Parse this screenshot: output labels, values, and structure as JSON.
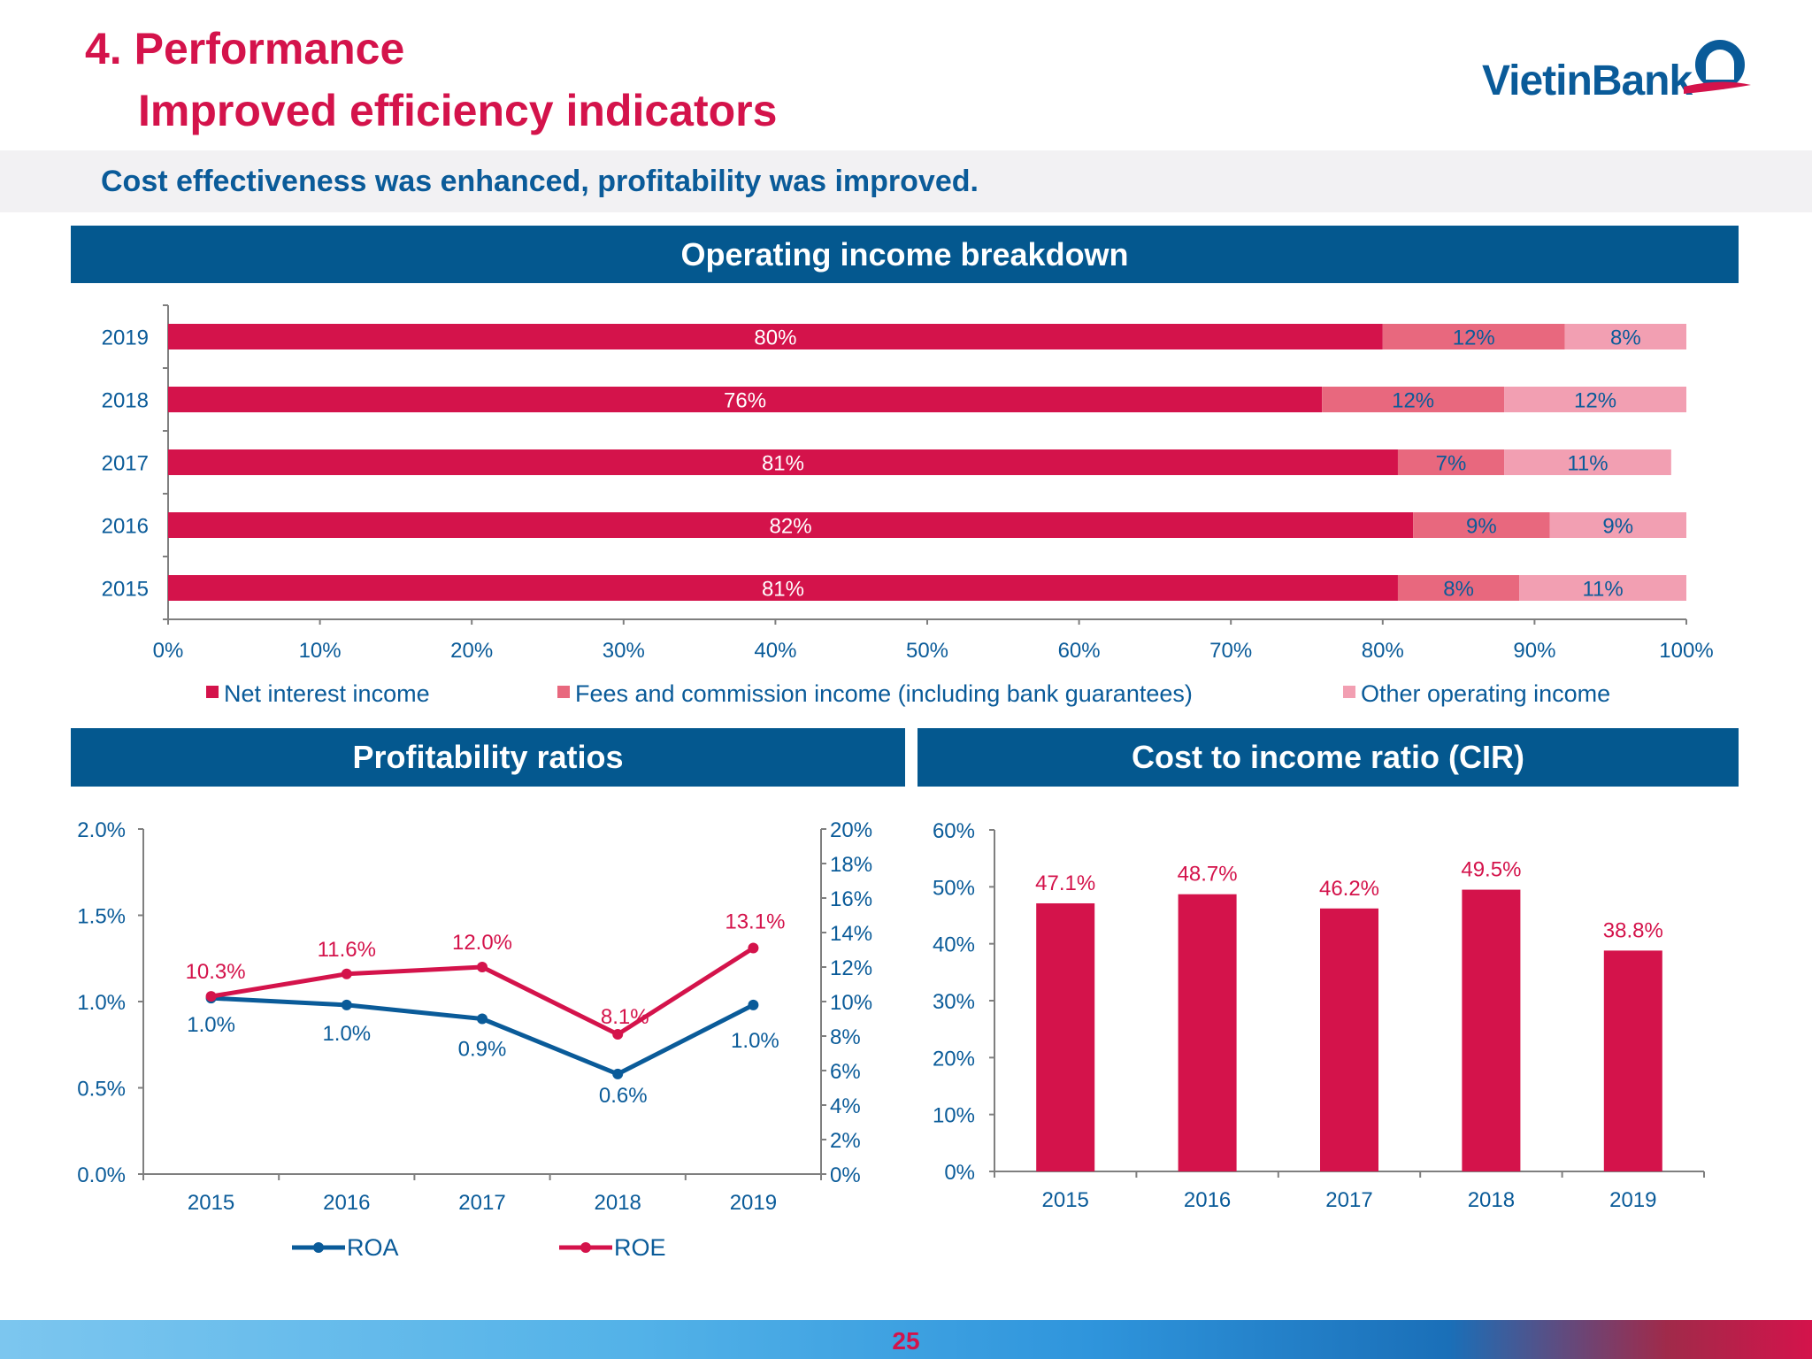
{
  "header": {
    "title_line1": "4. Performance",
    "title_line2": "Improved efficiency indicators",
    "subtitle": "Cost effectiveness was enhanced, profitability was improved.",
    "logo_text": "VietinBank"
  },
  "colors": {
    "net_interest": "#d4134b",
    "fees": "#e8687e",
    "other": "#f29fb2",
    "roa": "#0a5b99",
    "roe": "#d4134b",
    "cir_bar": "#d4134b",
    "axis_text": "#0a5b99"
  },
  "footer": {
    "page_number": "25"
  },
  "chart_data": [
    {
      "id": "operating_income",
      "type": "bar",
      "orientation": "horizontal",
      "stacked": true,
      "title": "Operating income breakdown",
      "categories": [
        "2019",
        "2018",
        "2017",
        "2016",
        "2015"
      ],
      "series": [
        {
          "name": "Net interest income",
          "values": [
            80,
            76,
            81,
            82,
            81
          ],
          "labels": [
            "80%",
            "76%",
            "81%",
            "82%",
            "81%"
          ]
        },
        {
          "name": "Fees and commission income (including bank guarantees)",
          "values": [
            12,
            12,
            7,
            9,
            8
          ],
          "labels": [
            "12%",
            "12%",
            "7%",
            "9%",
            "8%"
          ]
        },
        {
          "name": "Other operating income",
          "values": [
            8,
            12,
            11,
            9,
            11
          ],
          "labels": [
            "8%",
            "12%",
            "11%",
            "9%",
            "11%"
          ]
        }
      ],
      "xlim": [
        0,
        100
      ],
      "xticks": [
        "0%",
        "10%",
        "20%",
        "30%",
        "40%",
        "50%",
        "60%",
        "70%",
        "80%",
        "90%",
        "100%"
      ],
      "legend_position": "bottom"
    },
    {
      "id": "profitability",
      "type": "line",
      "title": "Profitability ratios",
      "categories": [
        "2015",
        "2016",
        "2017",
        "2018",
        "2019"
      ],
      "series": [
        {
          "name": "ROA",
          "axis": "left",
          "values": [
            1.02,
            0.98,
            0.9,
            0.58,
            0.98
          ],
          "labels": [
            "1.0%",
            "1.0%",
            "0.9%",
            "0.6%",
            "1.0%"
          ]
        },
        {
          "name": "ROE",
          "axis": "right",
          "values": [
            10.3,
            11.6,
            12.0,
            8.1,
            13.1
          ],
          "labels": [
            "10.3%",
            "11.6%",
            "12.0%",
            "8.1%",
            "13.1%"
          ]
        }
      ],
      "ylim_left": [
        0,
        2
      ],
      "yticks_left": [
        "0.0%",
        "0.5%",
        "1.0%",
        "1.5%",
        "2.0%"
      ],
      "ylim_right": [
        0,
        20
      ],
      "yticks_right": [
        "0%",
        "2%",
        "4%",
        "6%",
        "8%",
        "10%",
        "12%",
        "14%",
        "16%",
        "18%",
        "20%"
      ],
      "legend_position": "bottom"
    },
    {
      "id": "cir",
      "type": "bar",
      "title": "Cost to income ratio (CIR)",
      "categories": [
        "2015",
        "2016",
        "2017",
        "2018",
        "2019"
      ],
      "values": [
        47.1,
        48.7,
        46.2,
        49.5,
        38.8
      ],
      "labels": [
        "47.1%",
        "48.7%",
        "46.2%",
        "49.5%",
        "38.8%"
      ],
      "ylim": [
        0,
        60
      ],
      "yticks": [
        "0%",
        "10%",
        "20%",
        "30%",
        "40%",
        "50%",
        "60%"
      ]
    }
  ]
}
